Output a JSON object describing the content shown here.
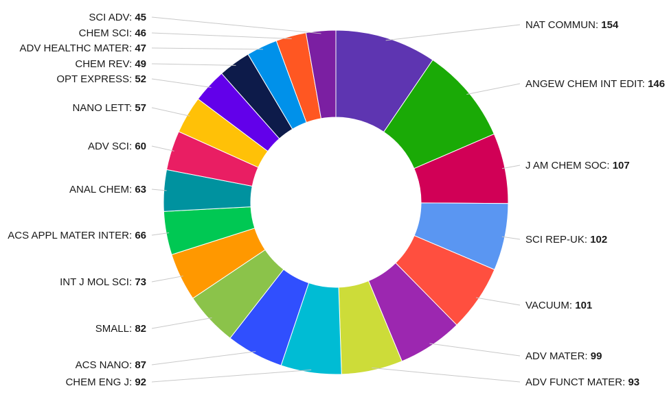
{
  "chart_data": {
    "type": "pie",
    "variant": "donut",
    "legend": "none",
    "slices": [
      {
        "label": "NAT COMMUN",
        "value": 154,
        "color": "#5e35b1"
      },
      {
        "label": "ANGEW CHEM INT EDIT",
        "value": 146,
        "color": "#1aaa06"
      },
      {
        "label": "J AM CHEM SOC",
        "value": 107,
        "color": "#d10056"
      },
      {
        "label": "SCI REP-UK",
        "value": 102,
        "color": "#5a96f2"
      },
      {
        "label": "VACUUM",
        "value": 101,
        "color": "#ff4f3f"
      },
      {
        "label": "ADV MATER",
        "value": 99,
        "color": "#9c27b0"
      },
      {
        "label": "ADV FUNCT MATER",
        "value": 93,
        "color": "#cddc39"
      },
      {
        "label": "CHEM ENG J",
        "value": 92,
        "color": "#00bcd4"
      },
      {
        "label": "ACS NANO",
        "value": 87,
        "color": "#304ffe"
      },
      {
        "label": "SMALL",
        "value": 82,
        "color": "#8bc34a"
      },
      {
        "label": "INT J MOL SCI",
        "value": 73,
        "color": "#ff9800"
      },
      {
        "label": "ACS APPL MATER INTER",
        "value": 66,
        "color": "#00c853"
      },
      {
        "label": "ANAL CHEM",
        "value": 63,
        "color": "#00929f"
      },
      {
        "label": "ADV SCI",
        "value": 60,
        "color": "#e91e63"
      },
      {
        "label": "NANO LETT",
        "value": 57,
        "color": "#ffc107"
      },
      {
        "label": "OPT EXPRESS",
        "value": 52,
        "color": "#6200ea"
      },
      {
        "label": "CHEM REV",
        "value": 49,
        "color": "#0d1b4a"
      },
      {
        "label": "ADV HEALTHC MATER",
        "value": 47,
        "color": "#0091ea"
      },
      {
        "label": "CHEM SCI",
        "value": 46,
        "color": "#ff5722"
      },
      {
        "label": "SCI ADV",
        "value": 45,
        "color": "#7b1fa2"
      }
    ]
  }
}
